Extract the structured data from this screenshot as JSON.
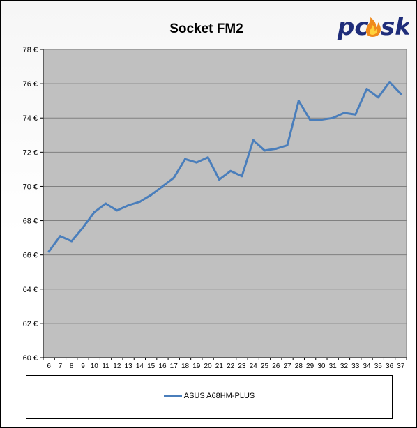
{
  "chart_data": {
    "type": "line",
    "title": "Socket FM2",
    "xlabel": "",
    "ylabel": "",
    "x": [
      6,
      7,
      8,
      9,
      10,
      11,
      12,
      13,
      14,
      15,
      16,
      17,
      18,
      19,
      20,
      21,
      22,
      23,
      24,
      25,
      26,
      27,
      28,
      29,
      30,
      31,
      32,
      33,
      34,
      35,
      36,
      37
    ],
    "y_ticks": [
      "60 €",
      "62 €",
      "64 €",
      "66 €",
      "68 €",
      "70 €",
      "72 €",
      "74 €",
      "76 €",
      "78 €"
    ],
    "ylim": [
      60,
      78
    ],
    "grid": "horizontal",
    "legend_position": "bottom",
    "series": [
      {
        "name": "ASUS A68HM-PLUS",
        "color": "#4a7ebb",
        "values": [
          66.2,
          67.1,
          66.8,
          67.6,
          68.5,
          69.0,
          68.6,
          68.9,
          69.1,
          69.5,
          70.0,
          70.5,
          71.6,
          71.4,
          71.7,
          70.4,
          70.9,
          70.6,
          72.7,
          72.1,
          72.2,
          72.4,
          75.0,
          73.9,
          73.9,
          74.0,
          74.3,
          74.2,
          75.7,
          75.2,
          76.1,
          75.4
        ]
      }
    ]
  },
  "logo": {
    "text": "pcåsk",
    "brand_color": "#1f2d7a",
    "flame_color": "#f08a1c"
  },
  "colors": {
    "plot_background": "#c0c0c0",
    "grid_line": "#808080"
  }
}
